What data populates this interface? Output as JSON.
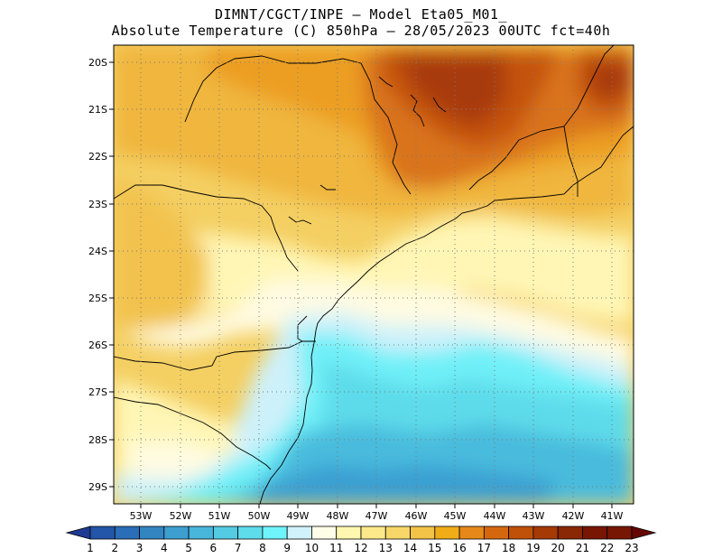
{
  "header": {
    "line1": "DIMNT/CGCT/INPE –  Model Eta05_M01_",
    "line2": "Absolute Temperature (C) 850hPa –  28/05/2023 00UTC fct=40h"
  },
  "map": {
    "lat_labels": [
      "20S",
      "21S",
      "22S",
      "23S",
      "24S",
      "25S",
      "26S",
      "27S",
      "28S",
      "29S"
    ],
    "lon_labels": [
      "53W",
      "52W",
      "51W",
      "50W",
      "49W",
      "48W",
      "47W",
      "46W",
      "45W",
      "44W",
      "43W",
      "42W",
      "41W"
    ],
    "grid": "dotted"
  },
  "colorbar": {
    "labels": [
      "1",
      "2",
      "3",
      "4",
      "5",
      "6",
      "7",
      "8",
      "9",
      "10",
      "11",
      "12",
      "13",
      "14",
      "15",
      "16",
      "17",
      "18",
      "19",
      "20",
      "21",
      "22",
      "23"
    ],
    "colors": [
      "#1f3a93",
      "#2356a8",
      "#2a6db8",
      "#3385c2",
      "#3d9fd0",
      "#48b6da",
      "#55cbe3",
      "#5edceb",
      "#6ef4fa",
      "#d0f3fb",
      "#fffde8",
      "#fff7b0",
      "#fbe98a",
      "#f6d768",
      "#f2c346",
      "#f0ad18",
      "#e6891a",
      "#d5680f",
      "#c05109",
      "#a63a05",
      "#8a2704",
      "#781604",
      "#650700"
    ]
  }
}
